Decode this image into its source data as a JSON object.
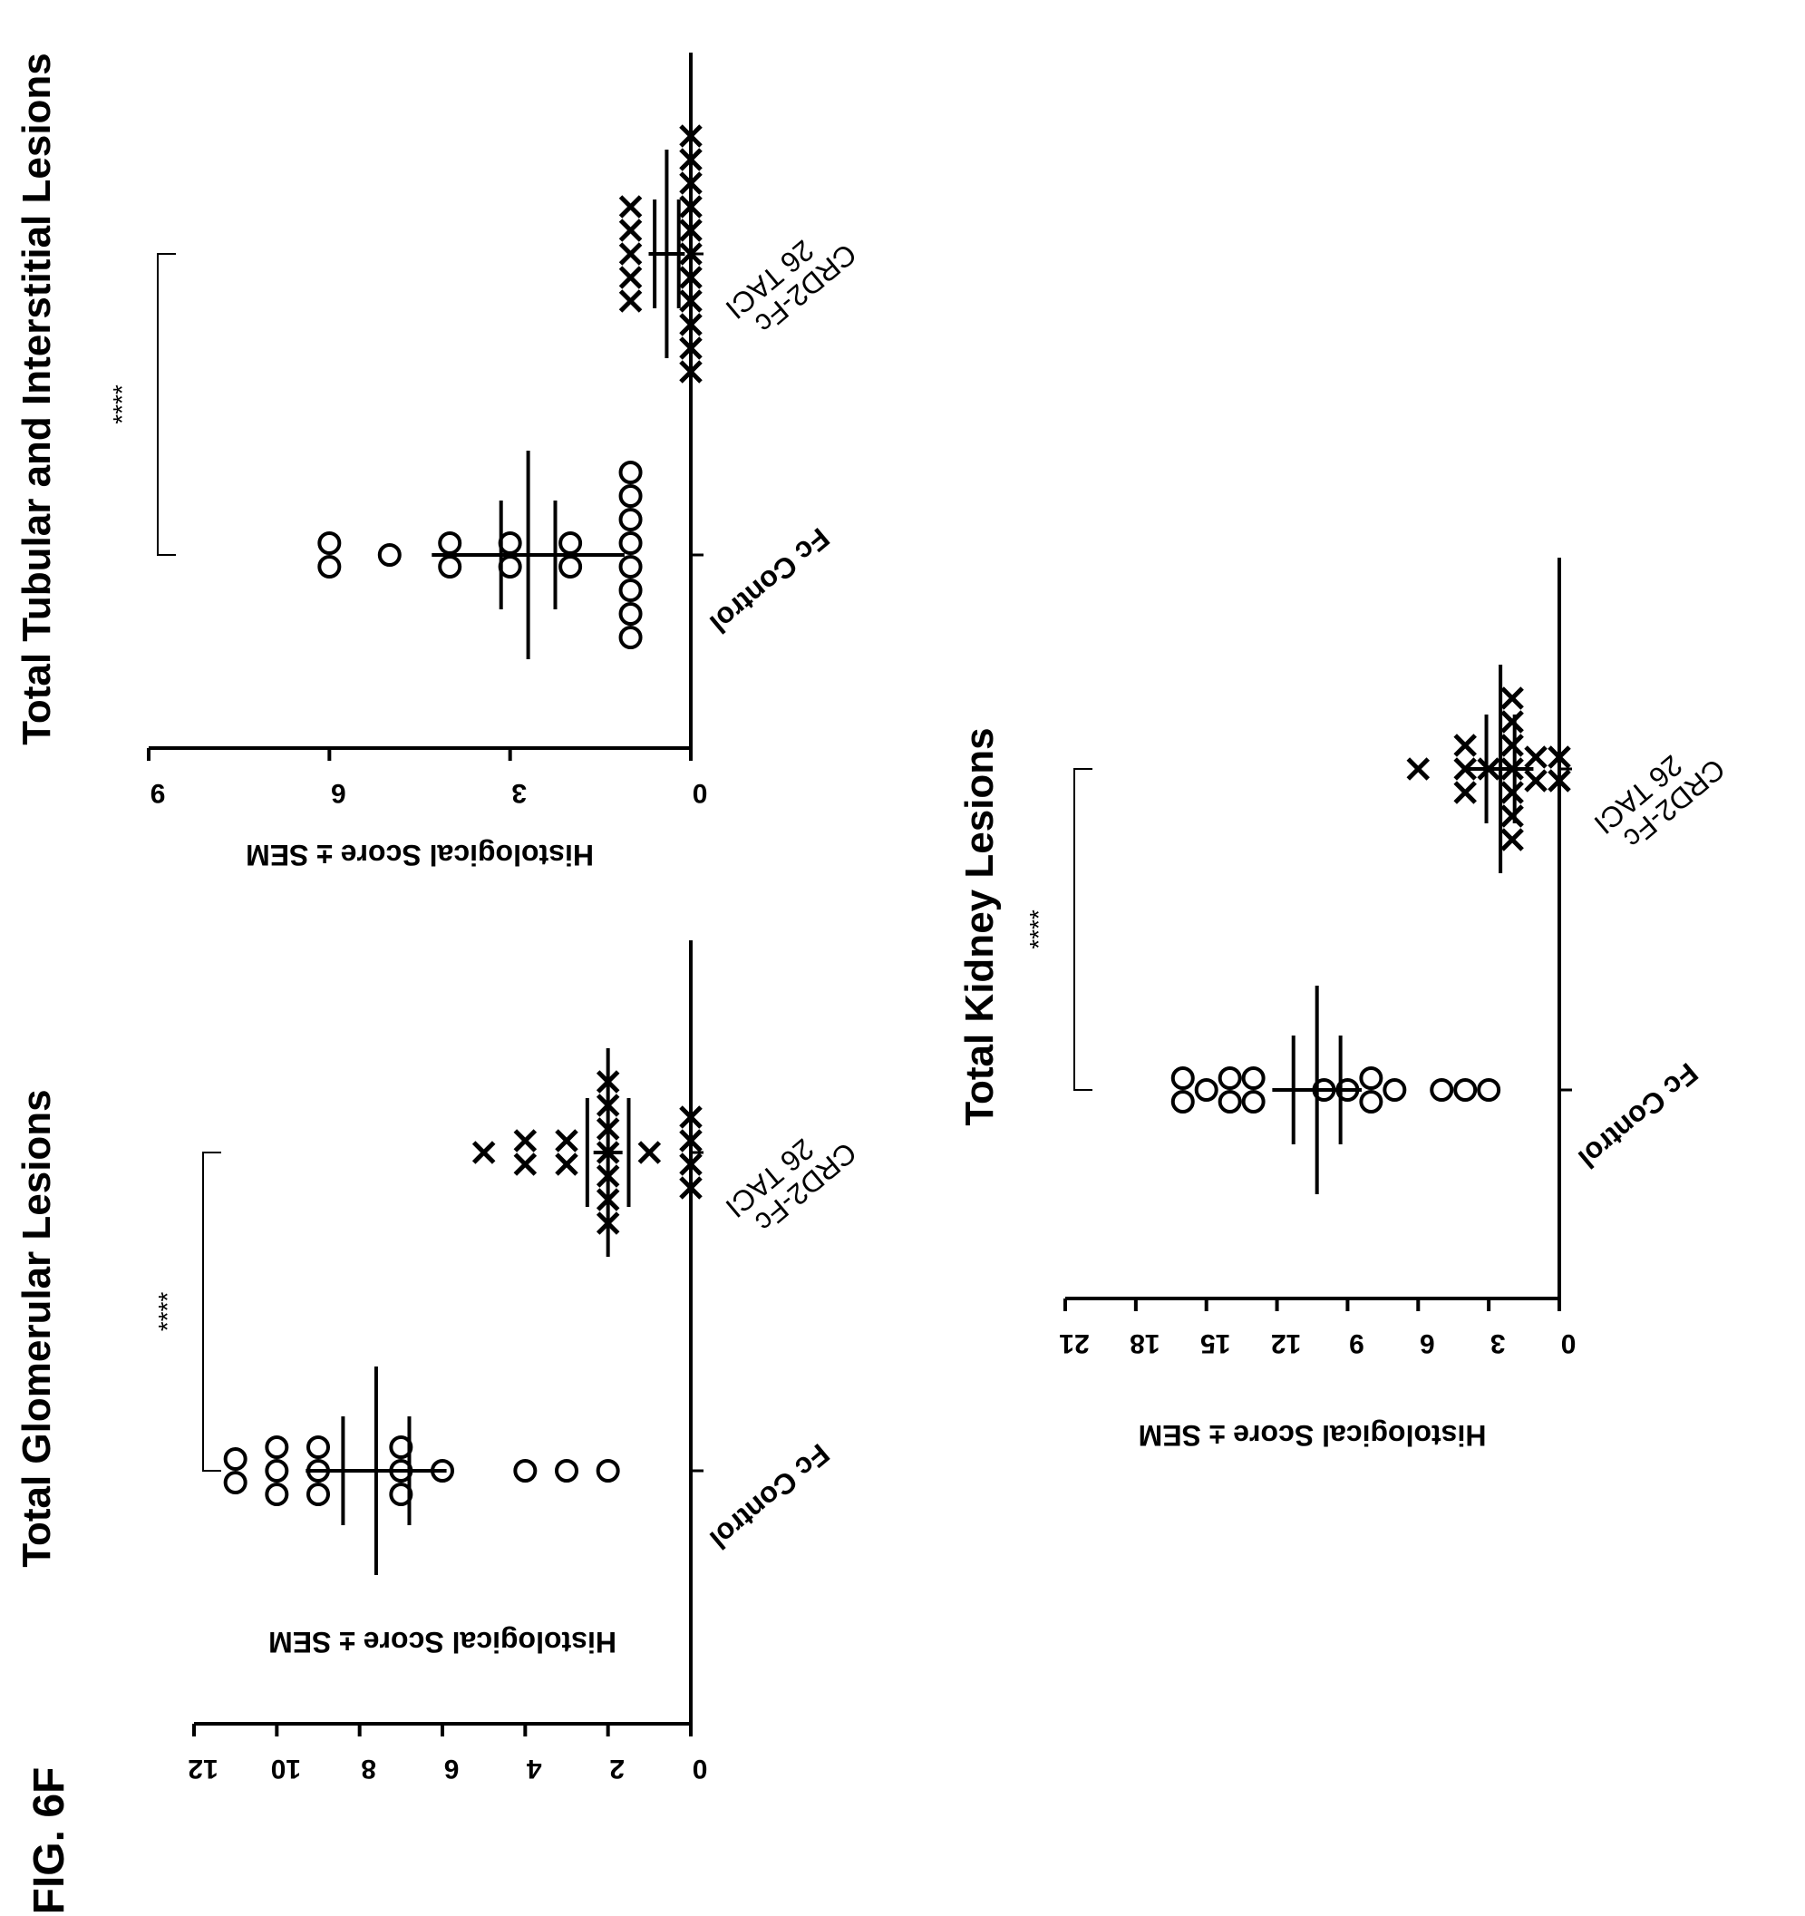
{
  "figure_label": "FIG. 6F",
  "chart_data": [
    {
      "type": "scatter",
      "title": "Total Glomerular Lesions",
      "ylabel": "Histological Score ± SEM",
      "xlabel": "",
      "ylim": [
        0,
        12
      ],
      "yticks": [
        0,
        2,
        4,
        6,
        8,
        10,
        12
      ],
      "categories": [
        "Fc Control",
        "26 TACI CRD2-Fc"
      ],
      "category_lines": [
        [
          "Fc Control"
        ],
        [
          "26 TACI",
          "CRD2-Fc"
        ]
      ],
      "significance": "****",
      "groups": [
        {
          "category": "Fc Control",
          "marker": "o",
          "values": [
            11,
            11,
            10,
            10,
            10,
            9,
            9,
            9,
            7,
            7,
            7,
            6,
            4,
            3,
            2
          ],
          "mean": 7.6,
          "sem": 0.8,
          "bar": 1.7
        },
        {
          "category": "26 TACI CRD2-Fc",
          "marker": "x",
          "values": [
            5,
            4,
            4,
            3,
            3,
            2,
            2,
            2,
            2,
            2,
            2,
            2,
            1,
            0,
            0,
            0,
            0
          ],
          "mean": 2.0,
          "sem": 0.5,
          "bar": 0.35
        }
      ]
    },
    {
      "type": "scatter",
      "title": "Total Tubular and Interstitial Lesions",
      "ylabel": "Histological Score ± SEM",
      "xlabel": "",
      "ylim": [
        0,
        9
      ],
      "yticks": [
        0,
        3,
        6,
        9
      ],
      "categories": [
        "Fc Control",
        "26 TACI CRD2-Fc"
      ],
      "category_lines": [
        [
          "Fc Control"
        ],
        [
          "26 TACI",
          "CRD2-Fc"
        ]
      ],
      "significance": "****",
      "groups": [
        {
          "category": "Fc Control",
          "marker": "o",
          "values": [
            6,
            6,
            5,
            4,
            4,
            3,
            3,
            2,
            2,
            1,
            1,
            1,
            1,
            1,
            1,
            1,
            1
          ],
          "mean": 2.7,
          "sem": 0.45,
          "bar": 1.6
        },
        {
          "category": "26 TACI CRD2-Fc",
          "marker": "x",
          "values": [
            1,
            1,
            1,
            1,
            1,
            0,
            0,
            0,
            0,
            0,
            0,
            0,
            0,
            0,
            0,
            0
          ],
          "mean": 0.4,
          "sem": 0.2,
          "bar": 0.3
        }
      ]
    },
    {
      "type": "scatter",
      "title": "Total Kidney Lesions",
      "ylabel": "Histological Score ± SEM",
      "xlabel": "",
      "ylim": [
        0,
        21
      ],
      "yticks": [
        0,
        3,
        6,
        9,
        12,
        15,
        18,
        21
      ],
      "categories": [
        "Fc Control",
        "26 TACI CRD2-Fc"
      ],
      "category_lines": [
        [
          "Fc Control"
        ],
        [
          "26 TACI",
          "CRD2-Fc"
        ]
      ],
      "significance": "****",
      "groups": [
        {
          "category": "Fc Control",
          "marker": "o",
          "values": [
            16,
            16,
            15,
            14,
            14,
            13,
            13,
            10,
            9,
            8,
            8,
            7,
            5,
            4,
            3
          ],
          "mean": 10.3,
          "sem": 1.0,
          "bar": 1.9
        },
        {
          "category": "26 TACI CRD2-Fc",
          "marker": "x",
          "values": [
            6,
            4,
            4,
            4,
            3,
            2,
            2,
            2,
            2,
            2,
            2,
            2,
            1,
            1,
            0,
            0
          ],
          "mean": 2.5,
          "sem": 0.6,
          "bar": 1.4
        }
      ]
    }
  ]
}
